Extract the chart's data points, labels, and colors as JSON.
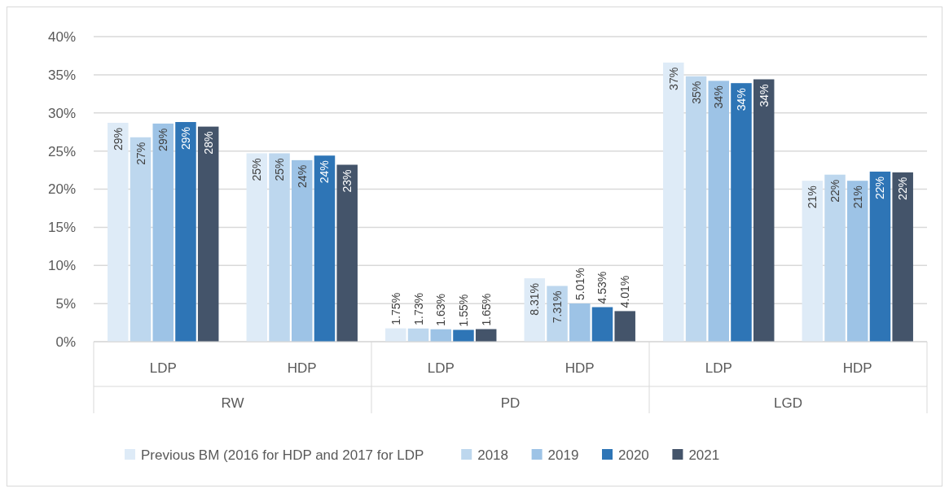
{
  "chart_data": {
    "type": "bar",
    "categories": [
      "LDP",
      "HDP",
      "LDP",
      "HDP",
      "LDP",
      "HDP"
    ],
    "annotations": [
      "RW",
      "PD",
      "LGD"
    ],
    "series": [
      {
        "name": "Previous BM (2016 for HDP and 2017 for LDP",
        "color": "#deebf7",
        "values": [
          28.7,
          24.7,
          1.75,
          8.31,
          36.6,
          21.1
        ],
        "value_labels": [
          "29%",
          "25%",
          "1.75%",
          "8.31%",
          "37%",
          "21%"
        ]
      },
      {
        "name": "2018",
        "color": "#bdd7ee",
        "values": [
          26.8,
          24.7,
          1.73,
          7.31,
          34.8,
          21.9
        ],
        "value_labels": [
          "27%",
          "25%",
          "1.73%",
          "7.31%",
          "35%",
          "22%"
        ]
      },
      {
        "name": "2019",
        "color": "#9dc3e6",
        "values": [
          28.6,
          23.8,
          1.63,
          5.01,
          34.2,
          21.1
        ],
        "value_labels": [
          "29%",
          "24%",
          "1.63%",
          "5.01%",
          "34%",
          "21%"
        ]
      },
      {
        "name": "2020",
        "color": "#2e75b6",
        "values": [
          28.8,
          24.4,
          1.55,
          4.53,
          33.9,
          22.3
        ],
        "value_labels": [
          "29%",
          "24%",
          "1.55%",
          "4.53%",
          "34%",
          "22%"
        ]
      },
      {
        "name": "2021",
        "color": "#44546a",
        "values": [
          28.2,
          23.2,
          1.65,
          4.01,
          34.4,
          22.2
        ],
        "value_labels": [
          "28%",
          "23%",
          "1.65%",
          "4.01%",
          "34%",
          "22%"
        ]
      }
    ],
    "ylim": [
      0,
      40
    ],
    "yticks": [
      {
        "value": 0,
        "label": "0%"
      },
      {
        "value": 5,
        "label": "5%"
      },
      {
        "value": 10,
        "label": "10%"
      },
      {
        "value": 15,
        "label": "15%"
      },
      {
        "value": 20,
        "label": "20%"
      },
      {
        "value": 25,
        "label": "25%"
      },
      {
        "value": 30,
        "label": "30%"
      },
      {
        "value": 35,
        "label": "35%"
      },
      {
        "value": 40,
        "label": "40%"
      }
    ],
    "grid": "y",
    "legend": "bottom"
  }
}
